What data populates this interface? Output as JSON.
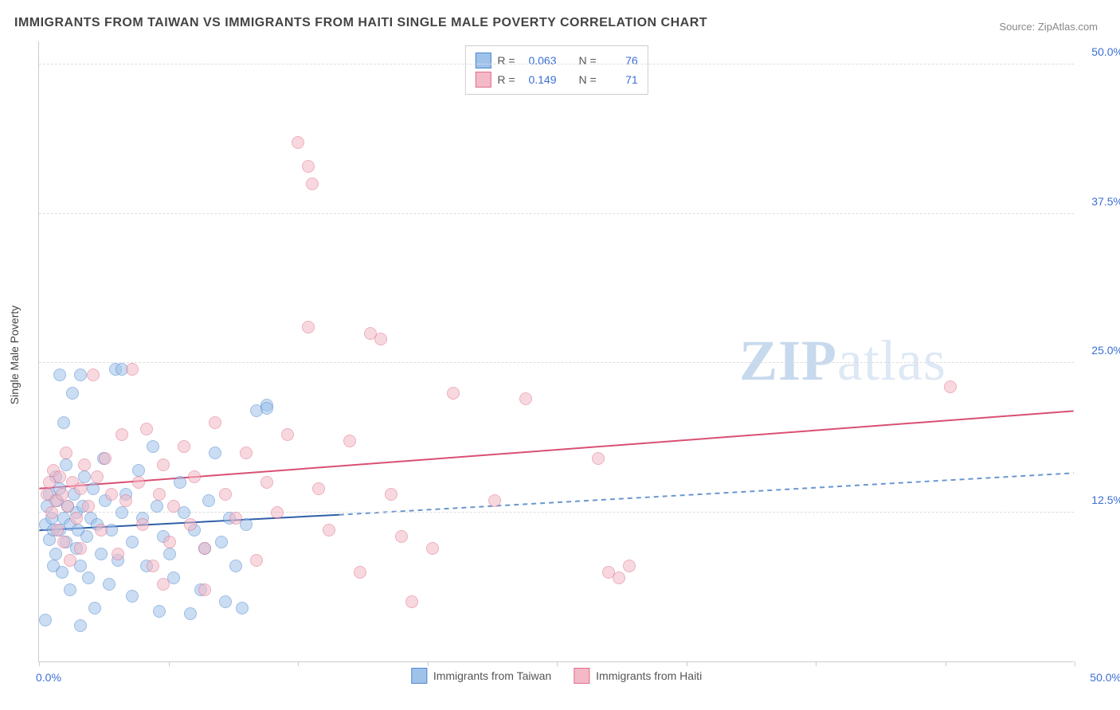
{
  "title": "IMMIGRANTS FROM TAIWAN VS IMMIGRANTS FROM HAITI SINGLE MALE POVERTY CORRELATION CHART",
  "source": "Source: ZipAtlas.com",
  "ylabel": "Single Male Poverty",
  "watermark_a": "ZIP",
  "watermark_b": "atlas",
  "chart": {
    "type": "scatter",
    "xlim": [
      0,
      50
    ],
    "ylim": [
      0,
      52
    ],
    "xtick_label_left": "0.0%",
    "xtick_label_right": "50.0%",
    "xtick_positions": [
      0,
      6.25,
      12.5,
      18.75,
      25,
      31.25,
      37.5,
      43.75,
      50
    ],
    "ytick_positions": [
      12.5,
      25,
      37.5,
      50
    ],
    "ytick_labels": [
      "12.5%",
      "25.0%",
      "37.5%",
      "50.0%"
    ],
    "grid_color": "#dddddd",
    "axis_color": "#cccccc",
    "background_color": "#ffffff",
    "label_color": "#3b6fd6",
    "marker_radius": 8,
    "marker_opacity": 0.55,
    "series": [
      {
        "name": "Immigrants from Taiwan",
        "fill": "#9fc2ea",
        "stroke": "#4f87cf",
        "R": "0.063",
        "N": "76",
        "regression": {
          "x1": 0,
          "y1": 11.0,
          "x2": 14.5,
          "y2": 12.3,
          "ext_x2": 50,
          "ext_y2": 15.8,
          "solid_color": "#2f5fa8",
          "dash_color": "#6b96d0",
          "width": 2
        },
        "points": [
          [
            0.3,
            11.5
          ],
          [
            0.4,
            13.0
          ],
          [
            0.5,
            10.2
          ],
          [
            0.5,
            14.0
          ],
          [
            0.6,
            12.0
          ],
          [
            0.7,
            11.0
          ],
          [
            0.7,
            8.0
          ],
          [
            0.8,
            15.5
          ],
          [
            0.8,
            9.0
          ],
          [
            0.9,
            13.5
          ],
          [
            1.0,
            11.0
          ],
          [
            1.0,
            14.5
          ],
          [
            1.1,
            7.5
          ],
          [
            1.2,
            20.0
          ],
          [
            1.2,
            12.0
          ],
          [
            1.3,
            10.0
          ],
          [
            1.3,
            16.5
          ],
          [
            1.4,
            13.0
          ],
          [
            1.5,
            6.0
          ],
          [
            1.5,
            11.5
          ],
          [
            1.6,
            22.5
          ],
          [
            1.7,
            14.0
          ],
          [
            1.8,
            9.5
          ],
          [
            1.8,
            12.5
          ],
          [
            1.9,
            11.0
          ],
          [
            2.0,
            24.0
          ],
          [
            2.0,
            8.0
          ],
          [
            2.1,
            13.0
          ],
          [
            2.2,
            15.5
          ],
          [
            2.3,
            10.5
          ],
          [
            2.4,
            7.0
          ],
          [
            2.5,
            12.0
          ],
          [
            2.6,
            14.5
          ],
          [
            2.7,
            4.5
          ],
          [
            2.8,
            11.5
          ],
          [
            3.0,
            9.0
          ],
          [
            3.1,
            17.0
          ],
          [
            3.2,
            13.5
          ],
          [
            3.4,
            6.5
          ],
          [
            3.5,
            11.0
          ],
          [
            3.7,
            24.5
          ],
          [
            3.8,
            8.5
          ],
          [
            4.0,
            12.5
          ],
          [
            4.2,
            14.0
          ],
          [
            4.5,
            5.5
          ],
          [
            4.5,
            10.0
          ],
          [
            4.8,
            16.0
          ],
          [
            5.0,
            12.0
          ],
          [
            5.2,
            8.0
          ],
          [
            5.5,
            18.0
          ],
          [
            5.7,
            13.0
          ],
          [
            6.0,
            10.5
          ],
          [
            6.3,
            9.0
          ],
          [
            6.5,
            7.0
          ],
          [
            6.8,
            15.0
          ],
          [
            7.0,
            12.5
          ],
          [
            7.3,
            4.0
          ],
          [
            7.5,
            11.0
          ],
          [
            7.8,
            6.0
          ],
          [
            8.0,
            9.5
          ],
          [
            8.2,
            13.5
          ],
          [
            8.5,
            17.5
          ],
          [
            8.8,
            10.0
          ],
          [
            9.0,
            5.0
          ],
          [
            9.2,
            12.0
          ],
          [
            9.5,
            8.0
          ],
          [
            9.8,
            4.5
          ],
          [
            10.0,
            11.5
          ],
          [
            10.5,
            21.0
          ],
          [
            11.0,
            21.5
          ],
          [
            11.0,
            21.2
          ],
          [
            2.0,
            3.0
          ],
          [
            0.3,
            3.5
          ],
          [
            5.8,
            4.2
          ],
          [
            4.0,
            24.5
          ],
          [
            1.0,
            24.0
          ]
        ]
      },
      {
        "name": "Immigrants from Haiti",
        "fill": "#f3b9c6",
        "stroke": "#e06f8c",
        "R": "0.149",
        "N": "71",
        "regression": {
          "x1": 0,
          "y1": 14.5,
          "x2": 50,
          "y2": 21.0,
          "solid_color": "#d94f73",
          "width": 2
        },
        "points": [
          [
            0.4,
            14.0
          ],
          [
            0.5,
            15.0
          ],
          [
            0.6,
            12.5
          ],
          [
            0.7,
            16.0
          ],
          [
            0.8,
            13.5
          ],
          [
            0.9,
            11.0
          ],
          [
            1.0,
            15.5
          ],
          [
            1.1,
            14.0
          ],
          [
            1.2,
            10.0
          ],
          [
            1.3,
            17.5
          ],
          [
            1.4,
            13.0
          ],
          [
            1.5,
            8.5
          ],
          [
            1.6,
            15.0
          ],
          [
            1.8,
            12.0
          ],
          [
            2.0,
            14.5
          ],
          [
            2.0,
            9.5
          ],
          [
            2.2,
            16.5
          ],
          [
            2.4,
            13.0
          ],
          [
            2.6,
            24.0
          ],
          [
            2.8,
            15.5
          ],
          [
            3.0,
            11.0
          ],
          [
            3.2,
            17.0
          ],
          [
            3.5,
            14.0
          ],
          [
            3.8,
            9.0
          ],
          [
            4.0,
            19.0
          ],
          [
            4.2,
            13.5
          ],
          [
            4.5,
            24.5
          ],
          [
            4.8,
            15.0
          ],
          [
            5.0,
            11.5
          ],
          [
            5.2,
            19.5
          ],
          [
            5.5,
            8.0
          ],
          [
            5.8,
            14.0
          ],
          [
            6.0,
            16.5
          ],
          [
            6.3,
            10.0
          ],
          [
            6.5,
            13.0
          ],
          [
            7.0,
            18.0
          ],
          [
            7.3,
            11.5
          ],
          [
            7.5,
            15.5
          ],
          [
            8.0,
            9.5
          ],
          [
            8.5,
            20.0
          ],
          [
            9.0,
            14.0
          ],
          [
            9.5,
            12.0
          ],
          [
            10.0,
            17.5
          ],
          [
            10.5,
            8.5
          ],
          [
            11.0,
            15.0
          ],
          [
            11.5,
            12.5
          ],
          [
            12.0,
            19.0
          ],
          [
            12.5,
            43.5
          ],
          [
            13.0,
            41.5
          ],
          [
            13.0,
            28.0
          ],
          [
            13.2,
            40.0
          ],
          [
            13.5,
            14.5
          ],
          [
            14.0,
            11.0
          ],
          [
            15.0,
            18.5
          ],
          [
            15.5,
            7.5
          ],
          [
            16.0,
            27.5
          ],
          [
            16.5,
            27.0
          ],
          [
            17.0,
            14.0
          ],
          [
            17.5,
            10.5
          ],
          [
            18.0,
            5.0
          ],
          [
            19.0,
            9.5
          ],
          [
            20.0,
            22.5
          ],
          [
            22.0,
            13.5
          ],
          [
            23.5,
            22.0
          ],
          [
            27.0,
            17.0
          ],
          [
            27.5,
            7.5
          ],
          [
            28.0,
            7.0
          ],
          [
            28.5,
            8.0
          ],
          [
            44.0,
            23.0
          ],
          [
            6.0,
            6.5
          ],
          [
            8.0,
            6.0
          ]
        ]
      }
    ],
    "legend_labels": {
      "R": "R =",
      "N": "N ="
    }
  }
}
